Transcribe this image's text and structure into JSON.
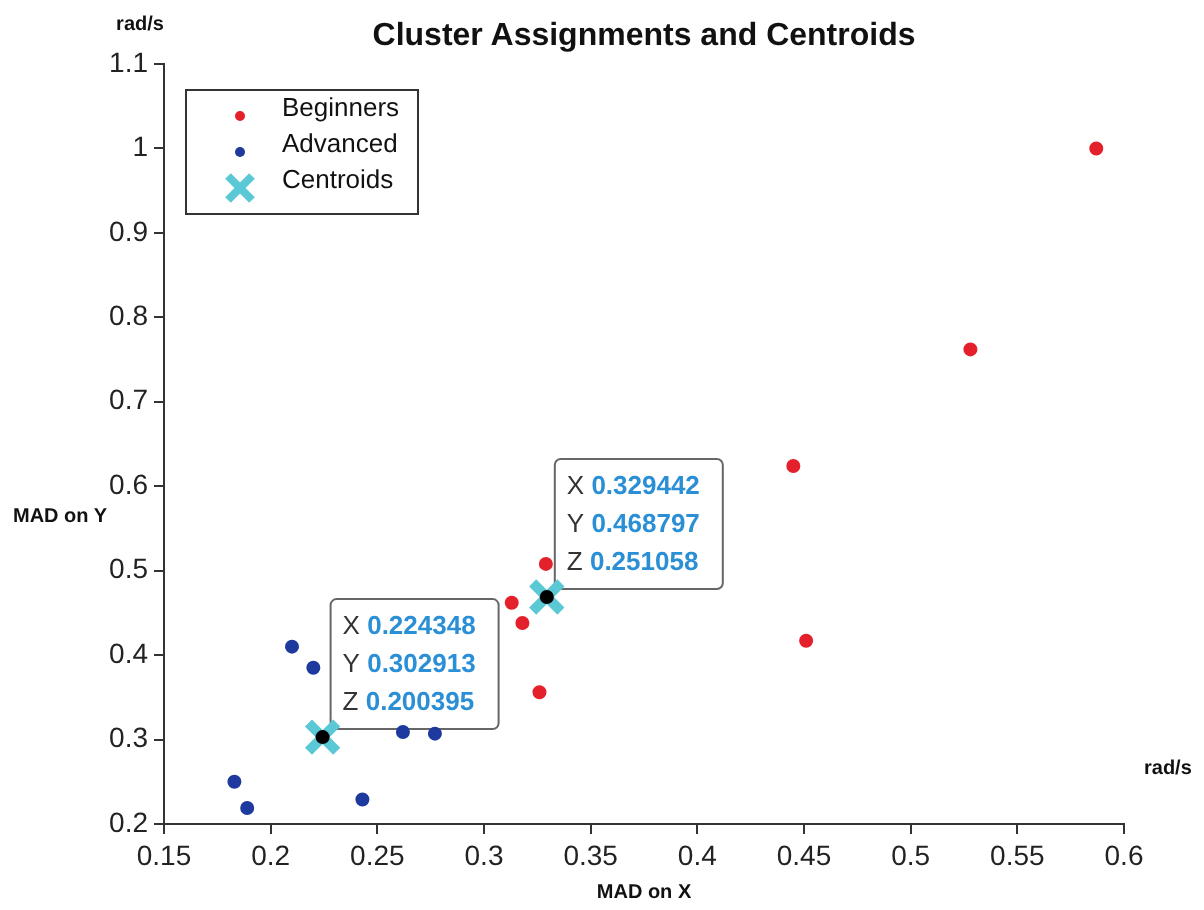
{
  "chart_data": {
    "type": "scatter",
    "title": "Cluster Assignments and Centroids",
    "xlabel": "MAD on X",
    "ylabel": "MAD on Y",
    "annotations": [
      "rad/s",
      "rad/s",
      {
        "text": "X 0.224348\nY 0.302913\nZ 0.200395",
        "x": 0.224348,
        "y": 0.302913
      },
      {
        "text": "X 0.329442\nY 0.468797\nZ 0.251058",
        "x": 0.329442,
        "y": 0.468797
      }
    ],
    "series": [
      {
        "name": "Beginners",
        "color": "#e4202a",
        "marker": "circle",
        "x": [
          0.313,
          0.318,
          0.326,
          0.329,
          0.445,
          0.451,
          0.528,
          0.587
        ],
        "values": [
          0.462,
          0.438,
          0.356,
          0.508,
          0.624,
          0.417,
          0.762,
          1.0
        ]
      },
      {
        "name": "Advanced",
        "color": "#1f3a9e",
        "marker": "circle",
        "x": [
          0.183,
          0.189,
          0.21,
          0.22,
          0.243,
          0.262,
          0.277
        ],
        "values": [
          0.25,
          0.219,
          0.41,
          0.385,
          0.229,
          0.309,
          0.307
        ]
      },
      {
        "name": "Centroids",
        "color": "#5bc8d6",
        "marker": "cross",
        "x": [
          0.224348,
          0.329442
        ],
        "values": [
          0.302913,
          0.468797
        ]
      }
    ],
    "xlim": [
      0.15,
      0.6
    ],
    "xticks": [
      0.15,
      0.2,
      0.25,
      0.3,
      0.35,
      0.4,
      0.45,
      0.5,
      0.55,
      0.6
    ],
    "ylim": [
      0.2,
      1.1
    ],
    "yticks": [
      0.2,
      0.3,
      0.4,
      0.5,
      0.6,
      0.7,
      0.8,
      0.9,
      1,
      1.1
    ],
    "grid": false,
    "legend": "top left"
  }
}
